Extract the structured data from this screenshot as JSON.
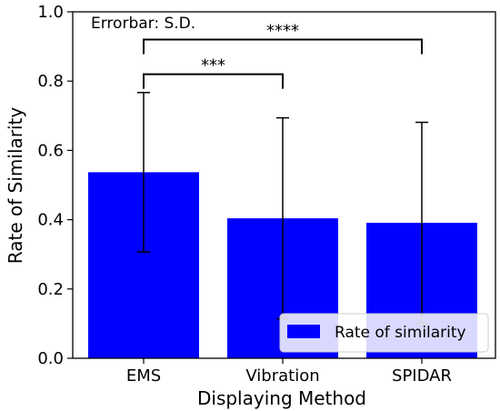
{
  "chart_data": {
    "type": "bar",
    "xlabel": "Displaying Method",
    "ylabel": "Rate of Similarity",
    "categories": [
      "EMS",
      "Vibration",
      "SPIDAR"
    ],
    "series": [
      {
        "name": "Rate of similarity",
        "values": [
          0.537,
          0.404,
          0.391
        ],
        "errors": [
          0.23,
          0.29,
          0.29
        ],
        "color": "#0000ff"
      }
    ],
    "ylim": [
      0.0,
      1.0
    ],
    "yticks": [
      "0.0",
      "0.2",
      "0.4",
      "0.6",
      "0.8",
      "1.0"
    ],
    "grid": false,
    "legend_position": "bottom-right",
    "annotation": "Errorbar: S.D.",
    "significance": [
      {
        "from": "EMS",
        "to": "Vibration",
        "label": "***",
        "y": 0.82
      },
      {
        "from": "EMS",
        "to": "SPIDAR",
        "label": "****",
        "y": 0.92
      }
    ]
  }
}
